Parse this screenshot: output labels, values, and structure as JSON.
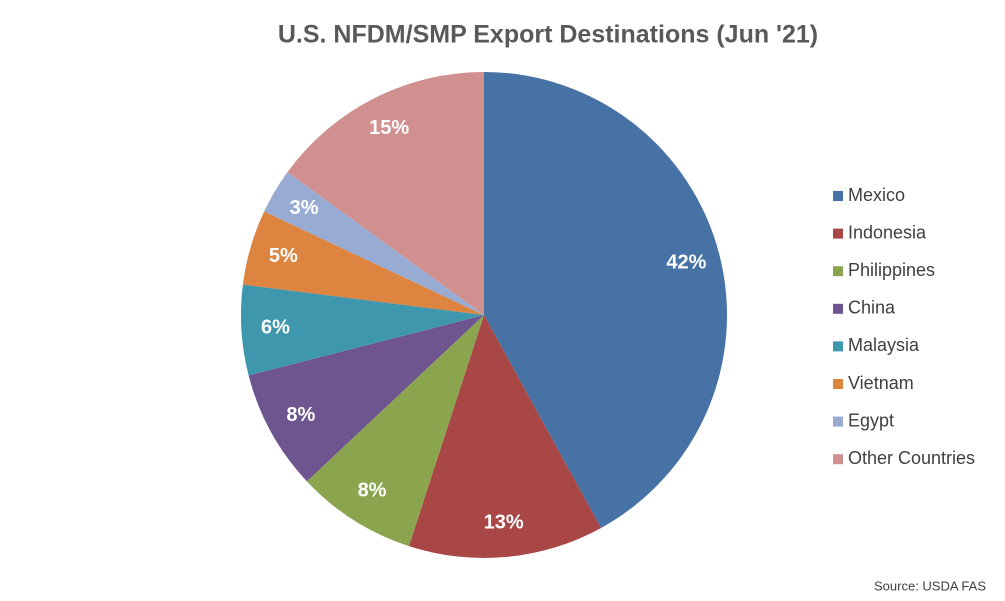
{
  "chart_data": {
    "type": "pie",
    "title": "U.S. NFDM/SMP Export Destinations (Jun '21)",
    "categories": [
      "Mexico",
      "Indonesia",
      "Philippines",
      "China",
      "Malaysia",
      "Vietnam",
      "Egypt",
      "Other Countries"
    ],
    "values": [
      42,
      13,
      8,
      8,
      6,
      5,
      3,
      15
    ],
    "value_labels": [
      "42%",
      "13%",
      "8%",
      "8%",
      "6%",
      "5%",
      "3%",
      "15%"
    ],
    "colors": [
      "#4672a6",
      "#a84745",
      "#8aa54e",
      "#6f5590",
      "#3f97ad",
      "#dc8440",
      "#97abd3",
      "#d09090"
    ],
    "legend": "right",
    "source": "Source: USDA FAS"
  }
}
